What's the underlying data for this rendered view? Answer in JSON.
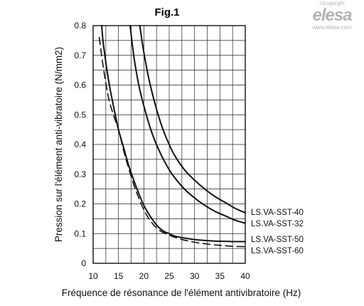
{
  "logo": {
    "copyright": "©Copyright",
    "brand": "elesa",
    "url": "www.elesa.com"
  },
  "chart_data": {
    "type": "line",
    "title": "Fig.1",
    "xlabel": "Fréquence de résonance de l'élément antivibratoire (Hz)",
    "ylabel": "Pression sur l'élément anti-vibratoire (N/mm2)",
    "xlim": [
      10,
      40
    ],
    "ylim": [
      0,
      0.8
    ],
    "x_ticks": [
      "10",
      "15",
      "20",
      "25",
      "30",
      "35",
      "40"
    ],
    "y_ticks": [
      "0",
      "0.1",
      "0.2",
      "0.3",
      "0.4",
      "0.5",
      "0.6",
      "0.7",
      "0.8"
    ],
    "grid": true,
    "series": [
      {
        "name": "LS.VA-SST-40",
        "style": "solid",
        "x": [
          19.2,
          20,
          21,
          22,
          23,
          24,
          25,
          26,
          28,
          30,
          32,
          34,
          36,
          38,
          40
        ],
        "y": [
          0.8,
          0.71,
          0.62,
          0.55,
          0.49,
          0.44,
          0.4,
          0.365,
          0.315,
          0.28,
          0.25,
          0.225,
          0.205,
          0.185,
          0.17
        ]
      },
      {
        "name": "LS.VA-SST-32",
        "style": "solid",
        "x": [
          17.3,
          18,
          19,
          20,
          21,
          22,
          23,
          24,
          25,
          26,
          28,
          30,
          32,
          34,
          36,
          38,
          40
        ],
        "y": [
          0.8,
          0.7,
          0.6,
          0.53,
          0.47,
          0.42,
          0.38,
          0.345,
          0.315,
          0.29,
          0.25,
          0.22,
          0.195,
          0.175,
          0.16,
          0.145,
          0.135
        ]
      },
      {
        "name": "LS.VA-SST-50",
        "style": "solid",
        "x": [
          11.7,
          12,
          13,
          14,
          15,
          16,
          17,
          18,
          19,
          20,
          21,
          22,
          23,
          24,
          25,
          26,
          28,
          30,
          32,
          34,
          36,
          38,
          40
        ],
        "y": [
          0.8,
          0.74,
          0.62,
          0.53,
          0.45,
          0.39,
          0.33,
          0.28,
          0.235,
          0.195,
          0.165,
          0.14,
          0.12,
          0.107,
          0.1,
          0.092,
          0.085,
          0.08,
          0.077,
          0.075,
          0.074,
          0.073,
          0.073
        ]
      },
      {
        "name": "LS.VA-SST-60",
        "style": "dashed",
        "x": [
          11.2,
          12,
          13,
          14,
          15,
          16,
          17,
          18,
          19,
          20,
          21,
          22,
          23,
          24,
          25,
          26,
          28,
          30,
          32,
          34,
          36,
          38,
          40
        ],
        "y": [
          0.76,
          0.66,
          0.56,
          0.5,
          0.45,
          0.38,
          0.32,
          0.265,
          0.22,
          0.18,
          0.15,
          0.128,
          0.112,
          0.102,
          0.095,
          0.088,
          0.078,
          0.071,
          0.066,
          0.062,
          0.059,
          0.057,
          0.056
        ]
      }
    ]
  }
}
